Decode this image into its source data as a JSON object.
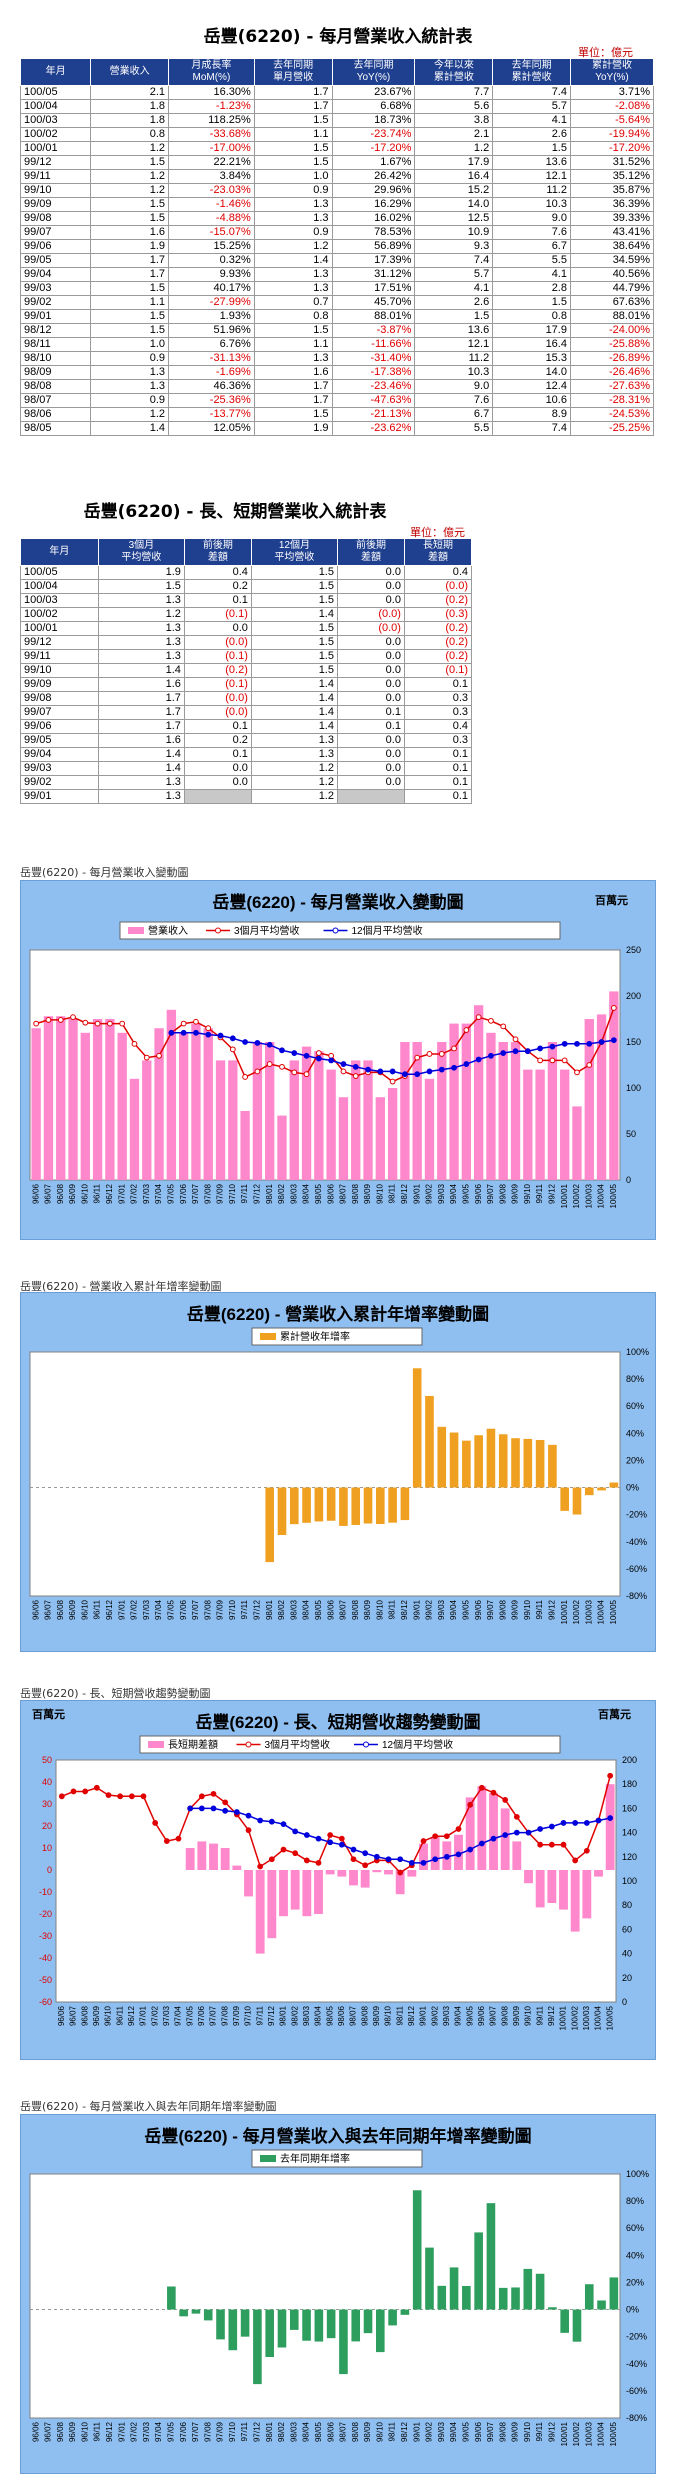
{
  "monthly_table": {
    "title": "岳豐(6220) - 每月營業收入統計表",
    "unit": "單位：億元",
    "headers": [
      "年月",
      "營業收入",
      "月成長率\nMoM(%)",
      "去年同期\n單月營收",
      "去年同期\nYoY(%)",
      "今年以來\n累計營收",
      "去年同期\n累計營收",
      "累計營收\nYoY(%)"
    ],
    "rows": [
      [
        "100/05",
        "2.1",
        "16.30%",
        "1.7",
        "23.67%",
        "7.7",
        "7.4",
        "3.71%"
      ],
      [
        "100/04",
        "1.8",
        "-1.23%",
        "1.7",
        "6.68%",
        "5.6",
        "5.7",
        "-2.08%"
      ],
      [
        "100/03",
        "1.8",
        "118.25%",
        "1.5",
        "18.73%",
        "3.8",
        "4.1",
        "-5.64%"
      ],
      [
        "100/02",
        "0.8",
        "-33.68%",
        "1.1",
        "-23.74%",
        "2.1",
        "2.6",
        "-19.94%"
      ],
      [
        "100/01",
        "1.2",
        "-17.00%",
        "1.5",
        "-17.20%",
        "1.2",
        "1.5",
        "-17.20%"
      ],
      [
        "99/12",
        "1.5",
        "22.21%",
        "1.5",
        "1.67%",
        "17.9",
        "13.6",
        "31.52%"
      ],
      [
        "99/11",
        "1.2",
        "3.84%",
        "1.0",
        "26.42%",
        "16.4",
        "12.1",
        "35.12%"
      ],
      [
        "99/10",
        "1.2",
        "-23.03%",
        "0.9",
        "29.96%",
        "15.2",
        "11.2",
        "35.87%"
      ],
      [
        "99/09",
        "1.5",
        "-1.46%",
        "1.3",
        "16.29%",
        "14.0",
        "10.3",
        "36.39%"
      ],
      [
        "99/08",
        "1.5",
        "-4.88%",
        "1.3",
        "16.02%",
        "12.5",
        "9.0",
        "39.33%"
      ],
      [
        "99/07",
        "1.6",
        "-15.07%",
        "0.9",
        "78.53%",
        "10.9",
        "7.6",
        "43.41%"
      ],
      [
        "99/06",
        "1.9",
        "15.25%",
        "1.2",
        "56.89%",
        "9.3",
        "6.7",
        "38.64%"
      ],
      [
        "99/05",
        "1.7",
        "0.32%",
        "1.4",
        "17.39%",
        "7.4",
        "5.5",
        "34.59%"
      ],
      [
        "99/04",
        "1.7",
        "9.93%",
        "1.3",
        "31.12%",
        "5.7",
        "4.1",
        "40.56%"
      ],
      [
        "99/03",
        "1.5",
        "40.17%",
        "1.3",
        "17.51%",
        "4.1",
        "2.8",
        "44.79%"
      ],
      [
        "99/02",
        "1.1",
        "-27.99%",
        "0.7",
        "45.70%",
        "2.6",
        "1.5",
        "67.63%"
      ],
      [
        "99/01",
        "1.5",
        "1.93%",
        "0.8",
        "88.01%",
        "1.5",
        "0.8",
        "88.01%"
      ],
      [
        "98/12",
        "1.5",
        "51.96%",
        "1.5",
        "-3.87%",
        "13.6",
        "17.9",
        "-24.00%"
      ],
      [
        "98/11",
        "1.0",
        "6.76%",
        "1.1",
        "-11.66%",
        "12.1",
        "16.4",
        "-25.88%"
      ],
      [
        "98/10",
        "0.9",
        "-31.13%",
        "1.3",
        "-31.40%",
        "11.2",
        "15.3",
        "-26.89%"
      ],
      [
        "98/09",
        "1.3",
        "-1.69%",
        "1.6",
        "-17.38%",
        "10.3",
        "14.0",
        "-26.46%"
      ],
      [
        "98/08",
        "1.3",
        "46.36%",
        "1.7",
        "-23.46%",
        "9.0",
        "12.4",
        "-27.63%"
      ],
      [
        "98/07",
        "0.9",
        "-25.36%",
        "1.7",
        "-47.63%",
        "7.6",
        "10.6",
        "-28.31%"
      ],
      [
        "98/06",
        "1.2",
        "-13.77%",
        "1.5",
        "-21.13%",
        "6.7",
        "8.9",
        "-24.53%"
      ],
      [
        "98/05",
        "1.4",
        "12.05%",
        "1.9",
        "-23.62%",
        "5.5",
        "7.4",
        "-25.25%"
      ]
    ]
  },
  "lt_table": {
    "title": "岳豐(6220) - 長、短期營業收入統計表",
    "unit": "單位：億元",
    "headers": [
      "年月",
      "3個月\n平均營收",
      "前後期\n差額",
      "12個月\n平均營收",
      "前後期\n差額",
      "長短期\n差額"
    ],
    "rows": [
      [
        "100/05",
        "1.9",
        "0.4",
        "1.5",
        "0.0",
        "0.4"
      ],
      [
        "100/04",
        "1.5",
        "0.2",
        "1.5",
        "0.0",
        "(0.0)"
      ],
      [
        "100/03",
        "1.3",
        "0.1",
        "1.5",
        "0.0",
        "(0.2)"
      ],
      [
        "100/02",
        "1.2",
        "(0.1)",
        "1.4",
        "(0.0)",
        "(0.3)"
      ],
      [
        "100/01",
        "1.3",
        "0.0",
        "1.5",
        "(0.0)",
        "(0.2)"
      ],
      [
        "99/12",
        "1.3",
        "(0.0)",
        "1.5",
        "0.0",
        "(0.2)"
      ],
      [
        "99/11",
        "1.3",
        "(0.1)",
        "1.5",
        "0.0",
        "(0.2)"
      ],
      [
        "99/10",
        "1.4",
        "(0.2)",
        "1.5",
        "0.0",
        "(0.1)"
      ],
      [
        "99/09",
        "1.6",
        "(0.1)",
        "1.4",
        "0.0",
        "0.1"
      ],
      [
        "99/08",
        "1.7",
        "(0.0)",
        "1.4",
        "0.0",
        "0.3"
      ],
      [
        "99/07",
        "1.7",
        "(0.0)",
        "1.4",
        "0.1",
        "0.3"
      ],
      [
        "99/06",
        "1.7",
        "0.1",
        "1.4",
        "0.1",
        "0.4"
      ],
      [
        "99/05",
        "1.6",
        "0.2",
        "1.3",
        "0.0",
        "0.3"
      ],
      [
        "99/04",
        "1.4",
        "0.1",
        "1.3",
        "0.0",
        "0.1"
      ],
      [
        "99/03",
        "1.4",
        "0.0",
        "1.2",
        "0.0",
        "0.1"
      ],
      [
        "99/02",
        "1.3",
        "0.0",
        "1.2",
        "0.0",
        "0.1"
      ],
      [
        "99/01",
        "1.3",
        "",
        "1.2",
        "",
        "0.1"
      ]
    ]
  },
  "captions": {
    "c1": "岳豐(6220) - 每月營業收入變動圖",
    "c2": "岳豐(6220) -  營業收入累計年增率變動圖",
    "c3": "岳豐(6220) -  長、短期營收趨勢變動圖",
    "c4": "岳豐(6220) -  每月營業收入與去年同期年增率變動圖"
  },
  "colors": {
    "header_bg": "#1f3f8f",
    "negative": "#e00000",
    "panel_bg": "#8fbff0",
    "revenue_bar": "#ff88cc",
    "ma3": "#e00000",
    "ma12": "#0000dd",
    "cum_bar": "#f0a020",
    "yoy_bar": "#2e9e5e"
  },
  "chart_data": [
    {
      "type": "bar",
      "title": "岳豐(6220) - 每月營業收入變動圖",
      "unit_label": "百萬元",
      "ylim": [
        0,
        250
      ],
      "yticks": [
        0,
        50,
        100,
        150,
        200,
        250
      ],
      "categories": [
        "96/06",
        "96/07",
        "96/08",
        "96/09",
        "96/10",
        "96/11",
        "96/12",
        "97/01",
        "97/02",
        "97/03",
        "97/04",
        "97/05",
        "97/06",
        "97/07",
        "97/08",
        "97/09",
        "97/10",
        "97/11",
        "97/12",
        "98/01",
        "98/02",
        "98/03",
        "98/04",
        "98/05",
        "98/06",
        "98/07",
        "98/08",
        "98/09",
        "98/10",
        "98/11",
        "98/12",
        "99/01",
        "99/02",
        "99/03",
        "99/04",
        "99/05",
        "99/06",
        "99/07",
        "99/08",
        "99/09",
        "99/10",
        "99/11",
        "99/12",
        "100/01",
        "100/02",
        "100/03",
        "100/04",
        "100/05"
      ],
      "series": [
        {
          "name": "營業收入",
          "kind": "bar",
          "values": [
            165,
            178,
            178,
            175,
            160,
            175,
            175,
            160,
            110,
            130,
            165,
            185,
            160,
            170,
            165,
            130,
            130,
            75,
            150,
            150,
            70,
            130,
            145,
            140,
            120,
            90,
            130,
            130,
            90,
            100,
            150,
            150,
            110,
            150,
            170,
            170,
            190,
            160,
            150,
            150,
            120,
            120,
            150,
            120,
            80,
            175,
            180,
            205
          ]
        },
        {
          "name": "3個月平均營收",
          "kind": "line",
          "values": [
            170,
            174,
            174,
            177,
            171,
            170,
            170,
            170,
            148,
            133,
            135,
            160,
            170,
            172,
            165,
            155,
            142,
            112,
            118,
            126,
            123,
            117,
            115,
            138,
            135,
            118,
            113,
            117,
            117,
            107,
            113,
            133,
            137,
            137,
            143,
            163,
            177,
            173,
            167,
            153,
            140,
            130,
            130,
            130,
            117,
            125,
            150,
            187
          ]
        },
        {
          "name": "12個月平均營收",
          "kind": "line",
          "values": [
            null,
            null,
            null,
            null,
            null,
            null,
            null,
            null,
            null,
            null,
            null,
            160,
            160,
            160,
            158,
            157,
            154,
            150,
            149,
            147,
            141,
            138,
            135,
            132,
            130,
            126,
            123,
            120,
            118,
            118,
            115,
            115,
            118,
            120,
            122,
            126,
            131,
            135,
            138,
            140,
            140,
            143,
            145,
            148,
            148,
            148,
            150,
            152
          ]
        }
      ]
    },
    {
      "type": "bar",
      "title": "岳豐(6220) -  營業收入累計年增率變動圖",
      "ylim": [
        -80,
        100
      ],
      "yticks": [
        -80,
        -60,
        -40,
        -20,
        0,
        20,
        40,
        60,
        80,
        100
      ],
      "categories": [
        "96/06",
        "96/07",
        "96/08",
        "96/09",
        "96/10",
        "96/11",
        "96/12",
        "97/01",
        "97/02",
        "97/03",
        "97/04",
        "97/05",
        "97/06",
        "97/07",
        "97/08",
        "97/09",
        "97/10",
        "97/11",
        "97/12",
        "98/01",
        "98/02",
        "98/03",
        "98/04",
        "98/05",
        "98/06",
        "98/07",
        "98/08",
        "98/09",
        "98/10",
        "98/11",
        "98/12",
        "99/01",
        "99/02",
        "99/03",
        "99/04",
        "99/05",
        "99/06",
        "99/07",
        "99/08",
        "99/09",
        "99/10",
        "99/11",
        "99/12",
        "100/01",
        "100/02",
        "100/03",
        "100/04",
        "100/05"
      ],
      "series": [
        {
          "name": "累計營收年增率",
          "values": [
            0,
            0,
            0,
            0,
            0,
            0,
            0,
            0,
            0,
            0,
            0,
            0,
            0,
            0,
            0,
            0,
            0,
            0,
            0,
            -55,
            -35,
            -27,
            -26,
            -25,
            -24.5,
            -28.3,
            -27.6,
            -26.5,
            -26.9,
            -25.9,
            -24,
            88,
            67.6,
            44.8,
            40.6,
            34.6,
            38.6,
            43.4,
            39.3,
            36.4,
            35.9,
            35.1,
            31.5,
            -17.2,
            -19.9,
            -5.6,
            -2.1,
            3.7
          ]
        }
      ]
    },
    {
      "type": "bar",
      "title": "岳豐(6220) -  長、短期營收趨勢變動圖",
      "unit_label": "百萬元",
      "ylim_left": [
        -60,
        50
      ],
      "ylim_right": [
        0,
        200
      ],
      "yticks_left": [
        -60,
        -50,
        -40,
        -30,
        -20,
        -10,
        0,
        10,
        20,
        30,
        40,
        50
      ],
      "yticks_right": [
        0,
        20,
        40,
        60,
        80,
        100,
        120,
        140,
        160,
        180,
        200
      ],
      "categories": [
        "96/06",
        "96/07",
        "96/08",
        "96/09",
        "96/10",
        "96/11",
        "96/12",
        "97/01",
        "97/02",
        "97/03",
        "97/04",
        "97/05",
        "97/06",
        "97/07",
        "97/08",
        "97/09",
        "97/10",
        "97/11",
        "97/12",
        "98/01",
        "98/02",
        "98/03",
        "98/04",
        "98/05",
        "98/06",
        "98/07",
        "98/08",
        "98/09",
        "98/10",
        "98/11",
        "98/12",
        "99/01",
        "99/02",
        "99/03",
        "99/04",
        "99/05",
        "99/06",
        "99/07",
        "99/08",
        "99/09",
        "99/10",
        "99/11",
        "99/12",
        "100/01",
        "100/02",
        "100/03",
        "100/04",
        "100/05"
      ],
      "series": [
        {
          "name": "長短期差額",
          "kind": "bar",
          "axis": "left",
          "values": [
            0,
            0,
            0,
            0,
            0,
            0,
            0,
            0,
            0,
            0,
            0,
            10,
            13,
            12,
            10,
            2,
            -12,
            -38,
            -31,
            -21,
            -18,
            -21,
            -20,
            -2,
            -3,
            -7,
            -8,
            -1,
            -2,
            -11,
            -3,
            12,
            15,
            13,
            16,
            33,
            38,
            35,
            28,
            13,
            -6,
            -17,
            -15,
            -18,
            -28,
            -22,
            -3,
            39
          ]
        },
        {
          "name": "3個月平均營收",
          "kind": "line",
          "axis": "right",
          "values": [
            170,
            174,
            174,
            177,
            171,
            170,
            170,
            170,
            148,
            133,
            135,
            160,
            170,
            172,
            165,
            155,
            142,
            112,
            118,
            126,
            123,
            117,
            115,
            138,
            135,
            118,
            113,
            117,
            117,
            107,
            113,
            133,
            137,
            137,
            143,
            163,
            177,
            173,
            167,
            153,
            140,
            130,
            130,
            130,
            117,
            125,
            150,
            187
          ]
        },
        {
          "name": "12個月平均營收",
          "kind": "line",
          "axis": "right",
          "values": [
            null,
            null,
            null,
            null,
            null,
            null,
            null,
            null,
            null,
            null,
            null,
            160,
            160,
            160,
            158,
            157,
            154,
            150,
            149,
            147,
            141,
            138,
            135,
            132,
            130,
            126,
            123,
            120,
            118,
            118,
            115,
            115,
            118,
            120,
            122,
            126,
            131,
            135,
            138,
            140,
            140,
            143,
            145,
            148,
            148,
            148,
            150,
            152
          ]
        }
      ]
    },
    {
      "type": "bar",
      "title": "岳豐(6220) -  每月營業收入與去年同期年增率變動圖",
      "ylim": [
        -80,
        100
      ],
      "yticks": [
        -80,
        -60,
        -40,
        -20,
        0,
        20,
        40,
        60,
        80,
        100
      ],
      "categories": [
        "96/06",
        "96/07",
        "96/08",
        "96/09",
        "96/10",
        "96/11",
        "96/12",
        "97/01",
        "97/02",
        "97/03",
        "97/04",
        "97/05",
        "97/06",
        "97/07",
        "97/08",
        "97/09",
        "97/10",
        "97/11",
        "97/12",
        "98/01",
        "98/02",
        "98/03",
        "98/04",
        "98/05",
        "98/06",
        "98/07",
        "98/08",
        "98/09",
        "98/10",
        "98/11",
        "98/12",
        "99/01",
        "99/02",
        "99/03",
        "99/04",
        "99/05",
        "99/06",
        "99/07",
        "99/08",
        "99/09",
        "99/10",
        "99/11",
        "99/12",
        "100/01",
        "100/02",
        "100/03",
        "100/04",
        "100/05"
      ],
      "series": [
        {
          "name": "去年同期年增率",
          "values": [
            0,
            0,
            0,
            0,
            0,
            0,
            0,
            0,
            0,
            0,
            0,
            17,
            -5,
            -3,
            -8,
            -22,
            -30,
            -20,
            -55,
            -35,
            -28,
            -15,
            -23,
            -23.6,
            -21.1,
            -47.6,
            -23.5,
            -17.4,
            -31.4,
            -11.7,
            -3.9,
            88,
            45.7,
            17.5,
            31.1,
            17.4,
            56.9,
            78.5,
            16,
            16.3,
            30,
            26.4,
            1.7,
            -17.2,
            -23.7,
            18.7,
            6.7,
            23.7
          ]
        }
      ]
    }
  ]
}
